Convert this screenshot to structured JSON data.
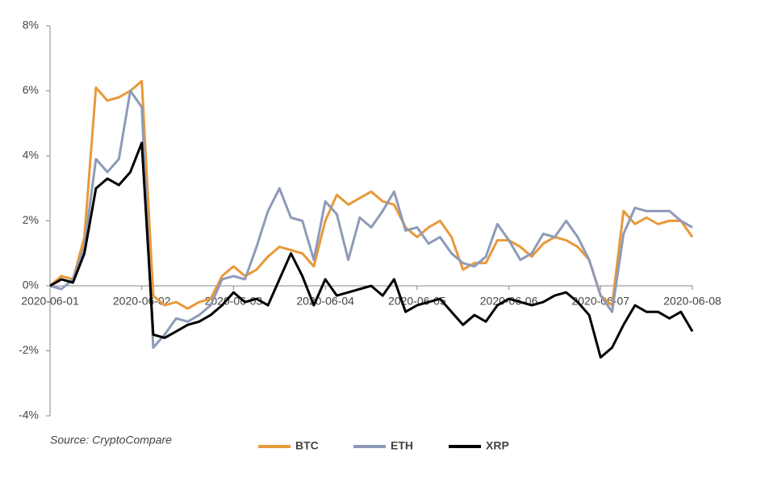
{
  "chart_data": {
    "type": "line",
    "categories": [
      "2020-06-01",
      null,
      null,
      null,
      null,
      null,
      null,
      null,
      "2020-06-02",
      null,
      null,
      null,
      null,
      null,
      null,
      null,
      "2020-06-03",
      null,
      null,
      null,
      null,
      null,
      null,
      null,
      "2020-06-04",
      null,
      null,
      null,
      null,
      null,
      null,
      null,
      "2020-06-05",
      null,
      null,
      null,
      null,
      null,
      null,
      null,
      "2020-06-06",
      null,
      null,
      null,
      null,
      null,
      null,
      null,
      "2020-06-07",
      null,
      null,
      null,
      null,
      null,
      null,
      null,
      "2020-06-08"
    ],
    "series": [
      {
        "name": "BTC",
        "color": "#e8993a",
        "values": [
          0,
          0.3,
          0.2,
          1.5,
          6.1,
          5.7,
          5.8,
          6.0,
          6.3,
          -0.3,
          -0.6,
          -0.5,
          -0.7,
          -0.5,
          -0.4,
          0.3,
          0.6,
          0.3,
          0.5,
          0.9,
          1.2,
          1.1,
          1.0,
          0.6,
          2.0,
          2.8,
          2.5,
          2.7,
          2.9,
          2.6,
          2.5,
          1.8,
          1.5,
          1.8,
          2.0,
          1.5,
          0.5,
          0.7,
          0.7,
          1.4,
          1.4,
          1.2,
          0.9,
          1.3,
          1.5,
          1.4,
          1.2,
          0.8,
          -0.3,
          -0.6,
          2.3,
          1.9,
          2.1,
          1.9,
          2.0,
          2.0,
          1.5
        ]
      },
      {
        "name": "ETH",
        "color": "#8e9ab8",
        "values": [
          0,
          -0.1,
          0.2,
          1.2,
          3.9,
          3.5,
          3.9,
          6.0,
          5.5,
          -1.9,
          -1.5,
          -1.0,
          -1.1,
          -0.9,
          -0.6,
          0.2,
          0.3,
          0.2,
          1.2,
          2.3,
          3.0,
          2.1,
          2.0,
          0.8,
          2.6,
          2.2,
          0.8,
          2.1,
          1.8,
          2.3,
          2.9,
          1.7,
          1.8,
          1.3,
          1.5,
          1.0,
          0.7,
          0.6,
          0.9,
          1.9,
          1.4,
          0.8,
          1.0,
          1.6,
          1.5,
          2.0,
          1.5,
          0.8,
          -0.3,
          -0.8,
          1.6,
          2.4,
          2.3,
          2.3,
          2.3,
          2.0,
          1.8
        ]
      },
      {
        "name": "XRP",
        "color": "#000000",
        "values": [
          0,
          0.2,
          0.1,
          1.0,
          3.0,
          3.3,
          3.1,
          3.5,
          4.4,
          -1.5,
          -1.6,
          -1.4,
          -1.2,
          -1.1,
          -0.9,
          -0.6,
          -0.2,
          -0.5,
          -0.4,
          -0.6,
          0.2,
          1.0,
          0.3,
          -0.6,
          0.2,
          -0.3,
          -0.2,
          -0.1,
          0.0,
          -0.3,
          0.2,
          -0.8,
          -0.6,
          -0.5,
          -0.4,
          -0.8,
          -1.2,
          -0.9,
          -1.1,
          -0.6,
          -0.4,
          -0.5,
          -0.6,
          -0.5,
          -0.3,
          -0.2,
          -0.5,
          -0.9,
          -2.2,
          -1.9,
          -1.2,
          -0.6,
          -0.8,
          -0.8,
          -1.0,
          -0.8,
          -1.4
        ]
      }
    ],
    "ylim": [
      -4,
      8
    ],
    "yticks": [
      {
        "value": -4,
        "label": "-4%"
      },
      {
        "value": -2,
        "label": "-2%"
      },
      {
        "value": 0,
        "label": "0%"
      },
      {
        "value": 2,
        "label": "2%"
      },
      {
        "value": 4,
        "label": "4%"
      },
      {
        "value": 6,
        "label": "6%"
      },
      {
        "value": 8,
        "label": "8%"
      }
    ],
    "annotation": "Source: CryptoCompare",
    "legend": "bottom"
  }
}
